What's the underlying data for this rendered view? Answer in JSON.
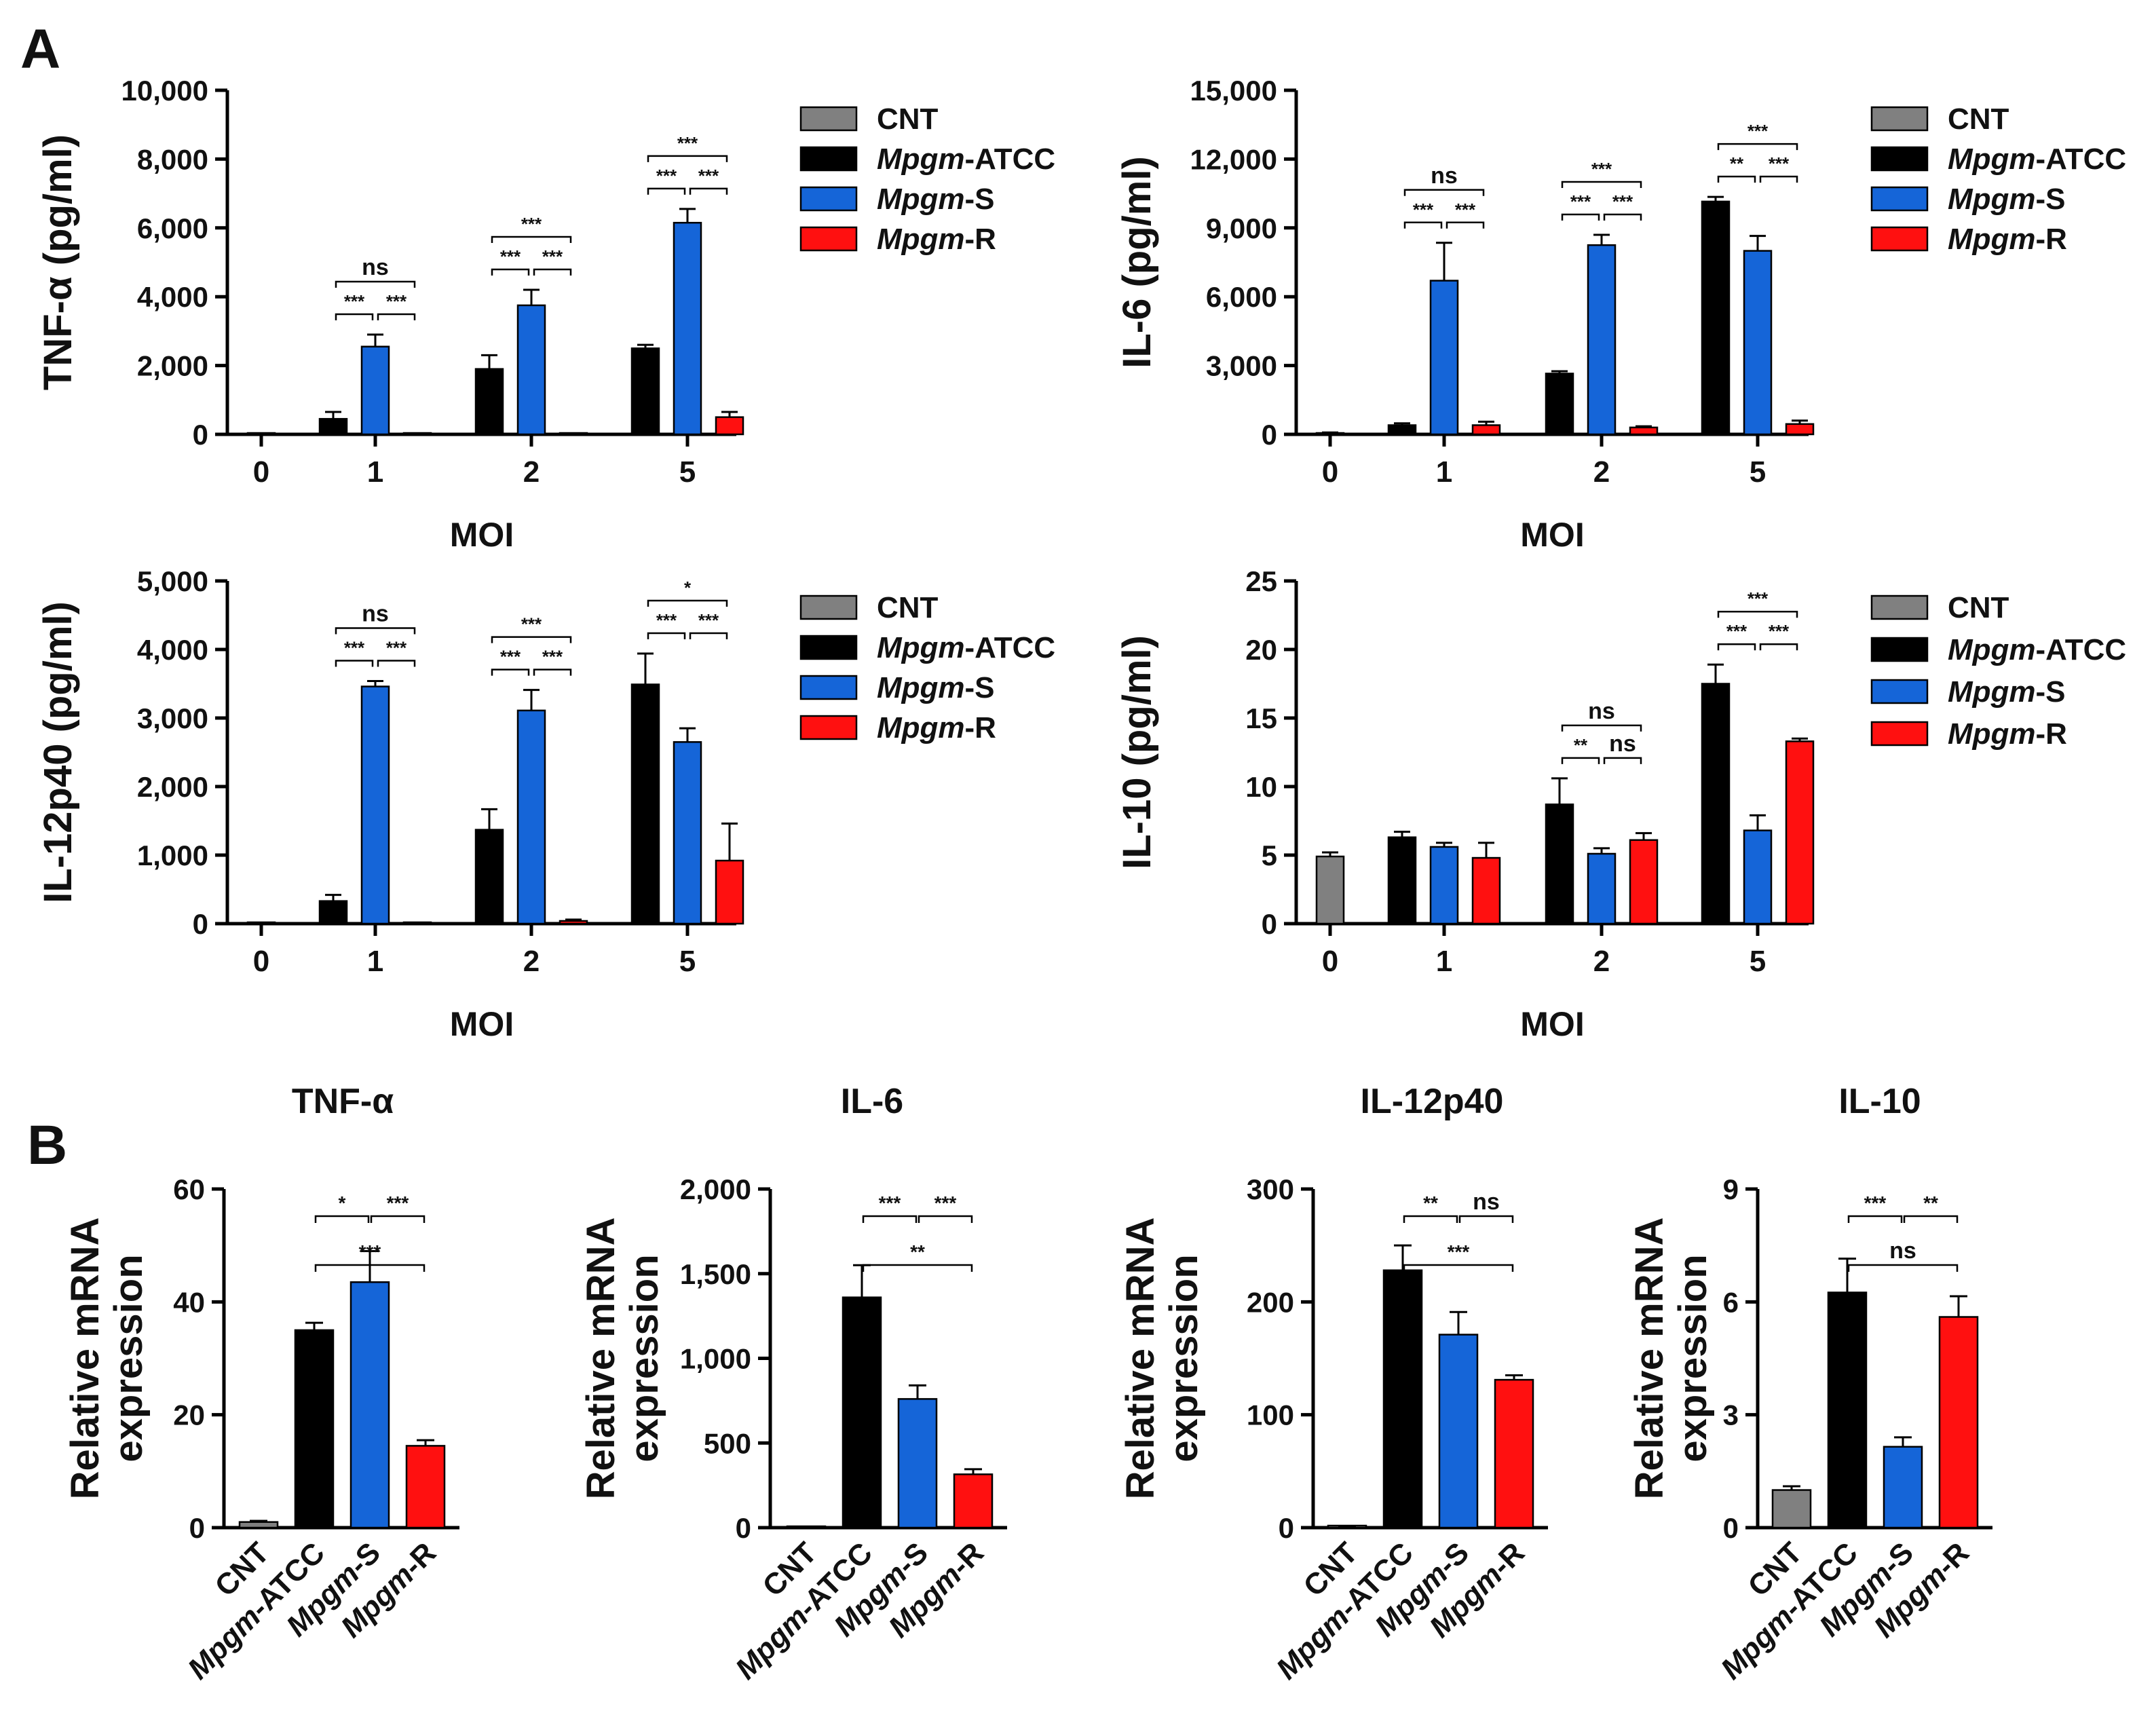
{
  "panel_labels": {
    "a": "A",
    "b": "B"
  },
  "colors": {
    "CNT": "#808080",
    "Mpgm-ATCC": "#000000",
    "Mpgm-S": "#1565d8",
    "Mpgm-R": "#ff1010"
  },
  "legend": {
    "entries": [
      {
        "prefix": "",
        "italic": "",
        "suffix": "CNT",
        "key": "CNT"
      },
      {
        "prefix": "",
        "italic": "Mpgm",
        "suffix": "-ATCC",
        "key": "Mpgm-ATCC"
      },
      {
        "prefix": "",
        "italic": "Mpgm",
        "suffix": "-S",
        "key": "Mpgm-S"
      },
      {
        "prefix": "",
        "italic": "Mpgm",
        "suffix": "-R",
        "key": "Mpgm-R"
      }
    ]
  },
  "b_categories": [
    {
      "plain": "CNT",
      "italic": "",
      "suffix": ""
    },
    {
      "plain": "",
      "italic": "Mpgm",
      "suffix": "-ATCC"
    },
    {
      "plain": "",
      "italic": "Mpgm",
      "suffix": "-S"
    },
    {
      "plain": "",
      "italic": "Mpgm",
      "suffix": "-R"
    }
  ],
  "chart_data": [
    {
      "id": "A1",
      "type": "bar",
      "ylabel": "TNF-α (pg/ml)",
      "xlabel": "MOI",
      "ylim": [
        0,
        10000
      ],
      "yticks": [
        "0",
        "2,000",
        "4,000",
        "6,000",
        "8,000",
        "10,000"
      ],
      "categories": [
        "0",
        "1",
        "2",
        "5"
      ],
      "series": [
        {
          "name": "CNT",
          "values": [
            0,
            null,
            null,
            null
          ],
          "errors": [
            0,
            null,
            null,
            null
          ]
        },
        {
          "name": "Mpgm-ATCC",
          "values": [
            null,
            450,
            1900,
            2500
          ],
          "errors": [
            null,
            200,
            400,
            100
          ]
        },
        {
          "name": "Mpgm-S",
          "values": [
            null,
            2550,
            3750,
            6150
          ],
          "errors": [
            null,
            350,
            450,
            400
          ]
        },
        {
          "name": "Mpgm-R",
          "values": [
            null,
            0,
            0,
            500
          ],
          "errors": [
            null,
            0,
            0,
            150
          ]
        }
      ],
      "significance": [
        {
          "cat": 1,
          "from": 1,
          "to": 2,
          "level": 0,
          "label": "***"
        },
        {
          "cat": 1,
          "from": 2,
          "to": 3,
          "level": 0,
          "label": "***"
        },
        {
          "cat": 1,
          "from": 1,
          "to": 3,
          "level": 1,
          "label": "ns"
        },
        {
          "cat": 2,
          "from": 1,
          "to": 2,
          "level": 0,
          "label": "***"
        },
        {
          "cat": 2,
          "from": 2,
          "to": 3,
          "level": 0,
          "label": "***"
        },
        {
          "cat": 2,
          "from": 1,
          "to": 3,
          "level": 1,
          "label": "***"
        },
        {
          "cat": 3,
          "from": 1,
          "to": 2,
          "level": 0,
          "label": "***"
        },
        {
          "cat": 3,
          "from": 2,
          "to": 3,
          "level": 0,
          "label": "***"
        },
        {
          "cat": 3,
          "from": 1,
          "to": 3,
          "level": 1,
          "label": "***"
        }
      ]
    },
    {
      "id": "A2",
      "type": "bar",
      "ylabel": "IL-6 (pg/ml)",
      "xlabel": "MOI",
      "ylim": [
        0,
        15000
      ],
      "yticks": [
        "0",
        "3,000",
        "6,000",
        "9,000",
        "12,000",
        "15,000"
      ],
      "categories": [
        "0",
        "1",
        "2",
        "5"
      ],
      "series": [
        {
          "name": "CNT",
          "values": [
            0,
            null,
            null,
            null
          ],
          "errors": [
            80,
            null,
            null,
            null
          ]
        },
        {
          "name": "Mpgm-ATCC",
          "values": [
            null,
            400,
            2650,
            10150
          ],
          "errors": [
            null,
            80,
            100,
            200
          ]
        },
        {
          "name": "Mpgm-S",
          "values": [
            null,
            6700,
            8250,
            8000
          ],
          "errors": [
            null,
            1650,
            450,
            650
          ]
        },
        {
          "name": "Mpgm-R",
          "values": [
            null,
            400,
            300,
            450
          ],
          "errors": [
            null,
            150,
            50,
            150
          ]
        }
      ],
      "significance": [
        {
          "cat": 1,
          "from": 1,
          "to": 2,
          "level": 0,
          "label": "***"
        },
        {
          "cat": 1,
          "from": 2,
          "to": 3,
          "level": 0,
          "label": "***"
        },
        {
          "cat": 1,
          "from": 1,
          "to": 3,
          "level": 1,
          "label": "ns"
        },
        {
          "cat": 2,
          "from": 1,
          "to": 2,
          "level": 0,
          "label": "***"
        },
        {
          "cat": 2,
          "from": 2,
          "to": 3,
          "level": 0,
          "label": "***"
        },
        {
          "cat": 2,
          "from": 1,
          "to": 3,
          "level": 1,
          "label": "***"
        },
        {
          "cat": 3,
          "from": 1,
          "to": 2,
          "level": 0,
          "label": "**"
        },
        {
          "cat": 3,
          "from": 2,
          "to": 3,
          "level": 0,
          "label": "***"
        },
        {
          "cat": 3,
          "from": 1,
          "to": 3,
          "level": 1,
          "label": "***"
        }
      ]
    },
    {
      "id": "A3",
      "type": "bar",
      "ylabel": "IL-12p40 (pg/ml)",
      "xlabel": "MOI",
      "ylim": [
        0,
        5000
      ],
      "yticks": [
        "0",
        "1,000",
        "2,000",
        "3,000",
        "4,000",
        "5,000"
      ],
      "categories": [
        "0",
        "1",
        "2",
        "5"
      ],
      "series": [
        {
          "name": "CNT",
          "values": [
            0,
            null,
            null,
            null
          ],
          "errors": [
            0,
            null,
            null,
            null
          ]
        },
        {
          "name": "Mpgm-ATCC",
          "values": [
            null,
            330,
            1370,
            3490
          ],
          "errors": [
            null,
            90,
            300,
            450
          ]
        },
        {
          "name": "Mpgm-S",
          "values": [
            null,
            3460,
            3110,
            2650
          ],
          "errors": [
            null,
            80,
            300,
            200
          ]
        },
        {
          "name": "Mpgm-R",
          "values": [
            null,
            0,
            40,
            920
          ],
          "errors": [
            null,
            0,
            20,
            540
          ]
        }
      ],
      "significance": [
        {
          "cat": 1,
          "from": 1,
          "to": 2,
          "level": 0,
          "label": "***"
        },
        {
          "cat": 1,
          "from": 2,
          "to": 3,
          "level": 0,
          "label": "***"
        },
        {
          "cat": 1,
          "from": 1,
          "to": 3,
          "level": 1,
          "label": "ns"
        },
        {
          "cat": 2,
          "from": 1,
          "to": 2,
          "level": 0,
          "label": "***"
        },
        {
          "cat": 2,
          "from": 2,
          "to": 3,
          "level": 0,
          "label": "***"
        },
        {
          "cat": 2,
          "from": 1,
          "to": 3,
          "level": 1,
          "label": "***"
        },
        {
          "cat": 3,
          "from": 1,
          "to": 2,
          "level": 0,
          "label": "***"
        },
        {
          "cat": 3,
          "from": 2,
          "to": 3,
          "level": 0,
          "label": "***"
        },
        {
          "cat": 3,
          "from": 1,
          "to": 3,
          "level": 1,
          "label": "*"
        }
      ]
    },
    {
      "id": "A4",
      "type": "bar",
      "ylabel": "IL-10 (pg/ml)",
      "xlabel": "MOI",
      "ylim": [
        0,
        25
      ],
      "yticks": [
        "0",
        "5",
        "10",
        "15",
        "20",
        "25"
      ],
      "categories": [
        "0",
        "1",
        "2",
        "5"
      ],
      "series": [
        {
          "name": "CNT",
          "values": [
            4.9,
            null,
            null,
            null
          ],
          "errors": [
            0.3,
            null,
            null,
            null
          ]
        },
        {
          "name": "Mpgm-ATCC",
          "values": [
            null,
            6.3,
            8.7,
            17.5
          ],
          "errors": [
            null,
            0.4,
            1.9,
            1.4
          ]
        },
        {
          "name": "Mpgm-S",
          "values": [
            null,
            5.6,
            5.1,
            6.8
          ],
          "errors": [
            null,
            0.3,
            0.4,
            1.1
          ]
        },
        {
          "name": "Mpgm-R",
          "values": [
            null,
            4.8,
            6.1,
            13.3
          ],
          "errors": [
            null,
            1.1,
            0.5,
            0.2
          ]
        }
      ],
      "significance": [
        {
          "cat": 2,
          "from": 1,
          "to": 2,
          "level": 0,
          "label": "**"
        },
        {
          "cat": 2,
          "from": 2,
          "to": 3,
          "level": 0,
          "label": "ns"
        },
        {
          "cat": 2,
          "from": 1,
          "to": 3,
          "level": 1,
          "label": "ns"
        },
        {
          "cat": 3,
          "from": 1,
          "to": 2,
          "level": 0,
          "label": "***"
        },
        {
          "cat": 3,
          "from": 2,
          "to": 3,
          "level": 0,
          "label": "***"
        },
        {
          "cat": 3,
          "from": 1,
          "to": 3,
          "level": 1,
          "label": "***"
        }
      ]
    },
    {
      "id": "B1",
      "type": "bar",
      "title": "TNF-α",
      "ylabel": "Relative mRNA expression",
      "ylim": [
        0,
        60
      ],
      "yticks": [
        "0",
        "20",
        "40",
        "60"
      ],
      "categories": [
        "CNT",
        "Mpgm-ATCC",
        "Mpgm-S",
        "Mpgm-R"
      ],
      "values": [
        1.0,
        35.0,
        43.5,
        14.5
      ],
      "errors": [
        0.2,
        1.3,
        5.5,
        1.0
      ],
      "significance": [
        {
          "from": 1,
          "to": 2,
          "level": 0,
          "label": "*"
        },
        {
          "from": 2,
          "to": 3,
          "level": 0,
          "label": "***"
        },
        {
          "from": 1,
          "to": 3,
          "level": 1,
          "label": "***"
        }
      ]
    },
    {
      "id": "B2",
      "type": "bar",
      "title": "IL-6",
      "ylabel": "Relative mRNA expression",
      "ylim": [
        0,
        2000
      ],
      "yticks": [
        "0",
        "500",
        "1,000",
        "1,500",
        "2,000"
      ],
      "categories": [
        "CNT",
        "Mpgm-ATCC",
        "Mpgm-S",
        "Mpgm-R"
      ],
      "values": [
        0,
        1360,
        760,
        315
      ],
      "errors": [
        0,
        190,
        80,
        30
      ],
      "significance": [
        {
          "from": 1,
          "to": 2,
          "level": 0,
          "label": "***"
        },
        {
          "from": 2,
          "to": 3,
          "level": 0,
          "label": "***"
        },
        {
          "from": 1,
          "to": 3,
          "level": 1,
          "label": "**"
        }
      ]
    },
    {
      "id": "B3",
      "type": "bar",
      "title": "IL-12p40",
      "ylabel": "Relative mRNA expression",
      "ylim": [
        0,
        300
      ],
      "yticks": [
        "0",
        "100",
        "200",
        "300"
      ],
      "categories": [
        "CNT",
        "Mpgm-ATCC",
        "Mpgm-S",
        "Mpgm-R"
      ],
      "values": [
        1,
        228,
        171,
        131
      ],
      "errors": [
        0.5,
        22,
        20,
        4
      ],
      "significance": [
        {
          "from": 1,
          "to": 2,
          "level": 0,
          "label": "**"
        },
        {
          "from": 2,
          "to": 3,
          "level": 0,
          "label": "ns"
        },
        {
          "from": 1,
          "to": 3,
          "level": 1,
          "label": "***"
        }
      ]
    },
    {
      "id": "B4",
      "type": "bar",
      "title": "IL-10",
      "ylabel": "Relative mRNA expression",
      "ylim": [
        0,
        9
      ],
      "yticks": [
        "0",
        "3",
        "6",
        "9"
      ],
      "categories": [
        "CNT",
        "Mpgm-ATCC",
        "Mpgm-S",
        "Mpgm-R"
      ],
      "values": [
        1.0,
        6.25,
        2.15,
        5.6
      ],
      "errors": [
        0.1,
        0.9,
        0.25,
        0.55
      ],
      "significance": [
        {
          "from": 1,
          "to": 2,
          "level": 0,
          "label": "***"
        },
        {
          "from": 2,
          "to": 3,
          "level": 0,
          "label": "**"
        },
        {
          "from": 1,
          "to": 3,
          "level": 1,
          "label": "ns"
        }
      ]
    }
  ]
}
